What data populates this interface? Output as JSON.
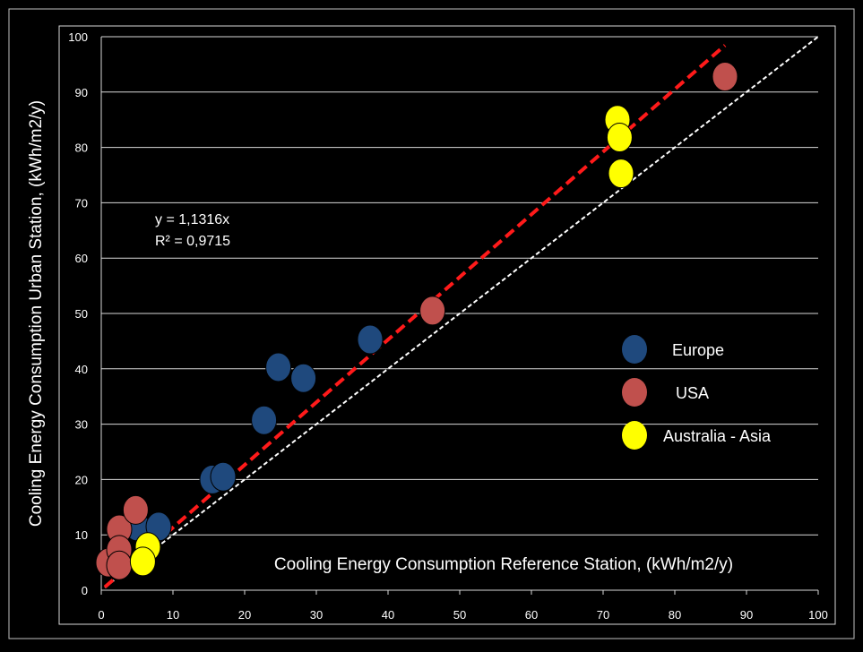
{
  "chart_data": {
    "type": "scatter",
    "xlabel": "Cooling Energy Consumption Reference Station, (kWh/m2/y)",
    "ylabel": "Cooling Energy Consumption Urban Station, (kWh/m2/y)",
    "xlim": [
      0,
      100
    ],
    "ylim": [
      0,
      100
    ],
    "x_ticks": [
      0,
      10,
      20,
      30,
      40,
      50,
      60,
      70,
      80,
      90,
      100
    ],
    "y_ticks": [
      0,
      10,
      20,
      30,
      40,
      50,
      60,
      70,
      80,
      90,
      100
    ],
    "grid": "horizontal",
    "legend_position": "right-center",
    "annotations": {
      "equation": "y = 1,1316x",
      "r_squared": "R² = 0,9715"
    },
    "trendline": {
      "slope": 1.1316,
      "x_range": [
        0.5,
        87
      ],
      "color": "#ff1a1a"
    },
    "identity_line": {
      "slope": 1,
      "x_range": [
        0.5,
        100
      ],
      "color": "#ffffff"
    },
    "series": [
      {
        "name": "Europe",
        "color": "#1f497d",
        "points": [
          {
            "x": 15.5,
            "y": 20.0
          },
          {
            "x": 17.0,
            "y": 20.5
          },
          {
            "x": 22.7,
            "y": 30.7
          },
          {
            "x": 24.7,
            "y": 40.3
          },
          {
            "x": 28.2,
            "y": 38.3
          },
          {
            "x": 37.5,
            "y": 45.3
          },
          {
            "x": 5.0,
            "y": 11.5
          },
          {
            "x": 8.0,
            "y": 11.5
          }
        ]
      },
      {
        "name": "USA",
        "color": "#c0504d",
        "points": [
          {
            "x": 1.0,
            "y": 5.0
          },
          {
            "x": 2.5,
            "y": 11.0
          },
          {
            "x": 4.8,
            "y": 14.5
          },
          {
            "x": 2.5,
            "y": 7.3
          },
          {
            "x": 2.5,
            "y": 4.5
          },
          {
            "x": 46.2,
            "y": 50.5
          },
          {
            "x": 87.0,
            "y": 92.8
          }
        ]
      },
      {
        "name": "Australia - Asia",
        "color": "#ffff00",
        "points": [
          {
            "x": 6.5,
            "y": 7.8
          },
          {
            "x": 5.8,
            "y": 5.2
          },
          {
            "x": 72.0,
            "y": 85.0
          },
          {
            "x": 72.3,
            "y": 81.8
          },
          {
            "x": 72.5,
            "y": 75.3
          }
        ]
      }
    ]
  }
}
